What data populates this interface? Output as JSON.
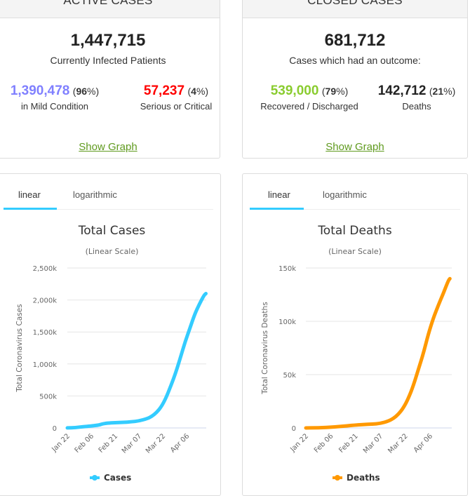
{
  "active_cases": {
    "header": "ACTIVE CASES",
    "total": "1,447,715",
    "total_label": "Currently Infected Patients",
    "mild": {
      "value": "1,390,478",
      "pct": "96",
      "label": "in Mild Condition",
      "color": "#8080ff"
    },
    "serious": {
      "value": "57,237",
      "pct": "4",
      "label": "Serious or Critical",
      "color": "#ff0000"
    },
    "show_graph": "Show Graph"
  },
  "closed_cases": {
    "header": "CLOSED CASES",
    "total": "681,712",
    "total_label": "Cases which had an outcome:",
    "recovered": {
      "value": "539,000",
      "pct": "79",
      "label": "Recovered / Discharged",
      "color": "#8acc2f"
    },
    "deaths": {
      "value": "142,712",
      "pct": "21",
      "label": "Deaths",
      "color": "#222222"
    },
    "show_graph": "Show Graph"
  },
  "tabs": {
    "linear": "linear",
    "logarithmic": "logarithmic",
    "active": "linear",
    "accent": "#33ccff"
  },
  "pct_open": "(",
  "pct_close": "%)",
  "chart_data": [
    {
      "type": "line",
      "title": "Total Cases",
      "subtitle": "(Linear Scale)",
      "xlabel": "",
      "ylabel": "Total Coronavirus Cases",
      "ylim": [
        0,
        2500000
      ],
      "yticks": [
        0,
        500000,
        1000000,
        1500000,
        2000000,
        2500000
      ],
      "ytick_labels": [
        "0",
        "500k",
        "1,000k",
        "1,500k",
        "2,000k",
        "2,500k"
      ],
      "xtick_labels": [
        "Jan 22",
        "Feb 06",
        "Feb 21",
        "Mar 07",
        "Mar 22",
        "Apr 06"
      ],
      "xtick_days": [
        0,
        15,
        30,
        45,
        60,
        75
      ],
      "grid": true,
      "legend": "bottom-center",
      "series": [
        {
          "name": "Cases",
          "color": "#33ccff",
          "x_days": [
            0,
            5,
            10,
            15,
            20,
            22,
            25,
            30,
            35,
            40,
            45,
            50,
            53,
            56,
            59,
            62,
            65,
            68,
            71,
            74,
            77,
            80,
            83,
            86,
            87
          ],
          "values": [
            580,
            6000,
            20000,
            31000,
            45000,
            64000,
            75000,
            83000,
            88000,
            95000,
            110000,
            145000,
            180000,
            240000,
            330000,
            470000,
            660000,
            860000,
            1100000,
            1350000,
            1560000,
            1780000,
            1940000,
            2080000,
            2100000
          ]
        }
      ]
    },
    {
      "type": "line",
      "title": "Total Deaths",
      "subtitle": "(Linear Scale)",
      "xlabel": "",
      "ylabel": "Total Coronavirus Deaths",
      "ylim": [
        0,
        150000
      ],
      "yticks": [
        0,
        50000,
        100000,
        150000
      ],
      "ytick_labels": [
        "0",
        "50k",
        "100k",
        "150k"
      ],
      "xtick_labels": [
        "Jan 22",
        "Feb 06",
        "Feb 21",
        "Mar 07",
        "Mar 22",
        "Apr 06"
      ],
      "xtick_days": [
        0,
        15,
        30,
        45,
        60,
        75
      ],
      "grid": true,
      "legend": "bottom-center",
      "series": [
        {
          "name": "Deaths",
          "color": "#ff9900",
          "x_days": [
            0,
            5,
            10,
            15,
            20,
            25,
            30,
            35,
            40,
            45,
            50,
            53,
            56,
            59,
            62,
            65,
            68,
            71,
            74,
            77,
            80,
            83,
            86,
            87
          ],
          "values": [
            17,
            100,
            300,
            700,
            1300,
            2000,
            2700,
            3200,
            3600,
            4200,
            6500,
            9000,
            13000,
            19000,
            28000,
            40000,
            55000,
            70000,
            88000,
            103000,
            115000,
            126000,
            138000,
            140000
          ]
        }
      ]
    }
  ]
}
